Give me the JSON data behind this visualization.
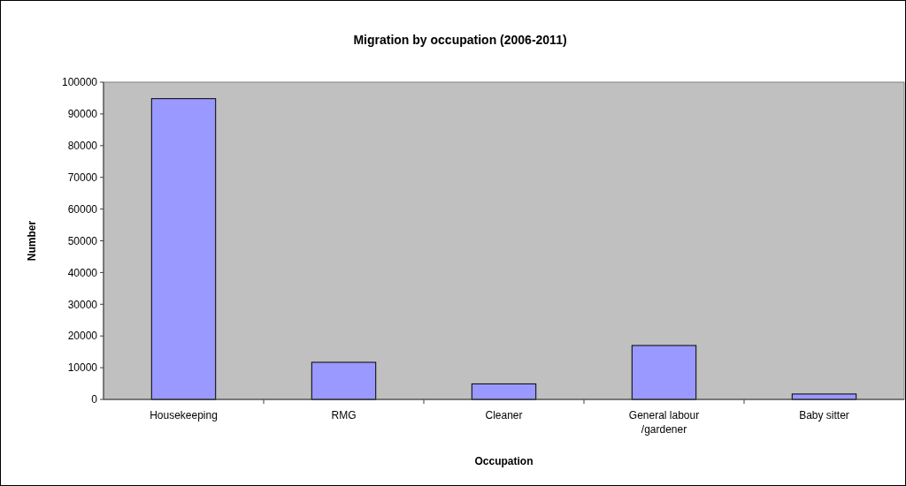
{
  "chart_data": {
    "type": "bar",
    "title": "Migration by occupation (2006-2011)",
    "xlabel": "Occupation",
    "ylabel": "Number",
    "categories": [
      "Housekeeping",
      "RMG",
      "Cleaner",
      "General labour /gardener",
      "Baby sitter"
    ],
    "values": [
      94800,
      11700,
      4900,
      17000,
      1700
    ],
    "color": "#9999ff",
    "ylim": [
      0,
      100000
    ],
    "yticks": [
      0,
      10000,
      20000,
      30000,
      40000,
      50000,
      60000,
      70000,
      80000,
      90000,
      100000
    ],
    "grid": false
  }
}
